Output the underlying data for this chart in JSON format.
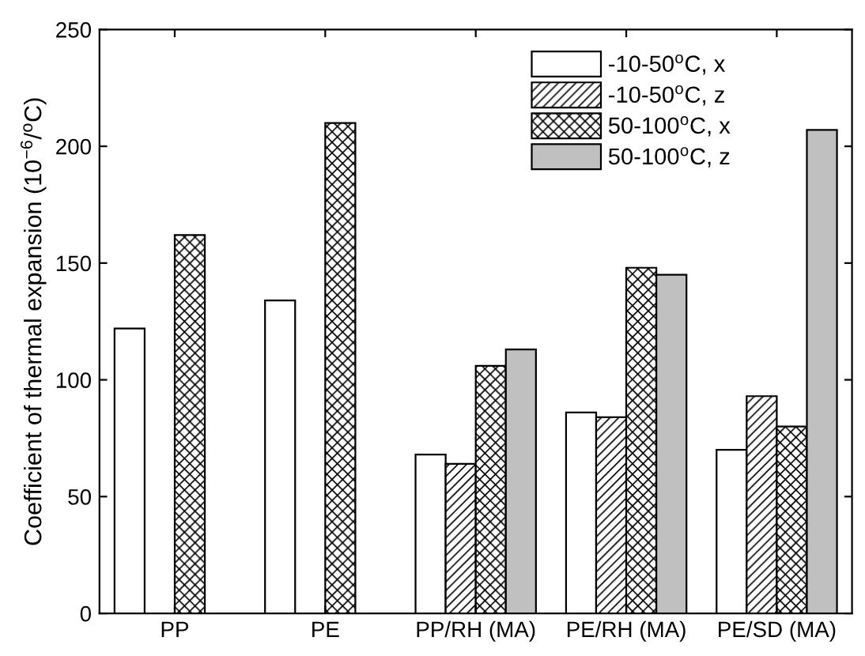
{
  "chart_data": {
    "type": "bar",
    "ylabel": "Coefficient of thermal expansion (10$^{−6}$/$^{o}$C)",
    "categories": [
      "PP",
      "PE",
      "PP/RH (MA)",
      "PE/RH (MA)",
      "PE/SD (MA)"
    ],
    "series": [
      {
        "name": "-10-50$^{o}$C, x",
        "color": "#ffffff",
        "values": [
          122,
          134,
          68,
          86,
          70
        ]
      },
      {
        "name": "-10-50$^{o}$C, z",
        "color": "#000000",
        "values": [
          null,
          null,
          64,
          84,
          93
        ]
      },
      {
        "name": "50-100$^{o}$C, x",
        "color": "#000000",
        "values": [
          162,
          210,
          106,
          148,
          80
        ]
      },
      {
        "name": "50-100$^{o}$C, z",
        "color": "#c0c0c0",
        "values": [
          null,
          null,
          113,
          145,
          207
        ]
      }
    ],
    "ylim": [
      0,
      250
    ],
    "yticks": [
      0,
      50,
      100,
      150,
      200,
      250
    ],
    "legend": "top right",
    "grid": false
  }
}
